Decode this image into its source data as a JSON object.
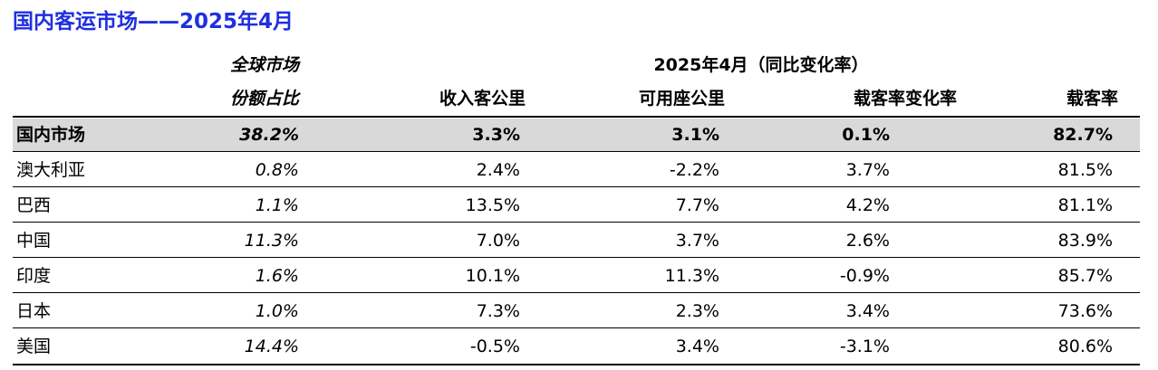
{
  "title": "国内客运市场——2025年4月",
  "header": {
    "share_line1": "全球市场",
    "share_line2": "份额占比",
    "period": "2025年4月（同比变化率）",
    "col_rpk": "收入客公里",
    "col_ask": "可用座公里",
    "col_plf_change": "载客率变化率",
    "col_plf": "载客率"
  },
  "rows": [
    {
      "name": "国内市场",
      "share": "38.2%",
      "rpk": "3.3%",
      "ask": "3.1%",
      "plf_change": "0.1%",
      "plf": "82.7%"
    },
    {
      "name": "澳大利亚",
      "share": "0.8%",
      "rpk": "2.4%",
      "ask": "-2.2%",
      "plf_change": "3.7%",
      "plf": "81.5%"
    },
    {
      "name": "巴西",
      "share": "1.1%",
      "rpk": "13.5%",
      "ask": "7.7%",
      "plf_change": "4.2%",
      "plf": "81.1%"
    },
    {
      "name": "中国",
      "share": "11.3%",
      "rpk": "7.0%",
      "ask": "3.7%",
      "plf_change": "2.6%",
      "plf": "83.9%"
    },
    {
      "name": "印度",
      "share": "1.6%",
      "rpk": "10.1%",
      "ask": "11.3%",
      "plf_change": "-0.9%",
      "plf": "85.7%"
    },
    {
      "name": "日本",
      "share": "1.0%",
      "rpk": "7.3%",
      "ask": "2.3%",
      "plf_change": "3.4%",
      "plf": "73.6%"
    },
    {
      "name": "美国",
      "share": "14.4%",
      "rpk": "-0.5%",
      "ask": "3.4%",
      "plf_change": "-3.1%",
      "plf": "80.6%"
    }
  ]
}
